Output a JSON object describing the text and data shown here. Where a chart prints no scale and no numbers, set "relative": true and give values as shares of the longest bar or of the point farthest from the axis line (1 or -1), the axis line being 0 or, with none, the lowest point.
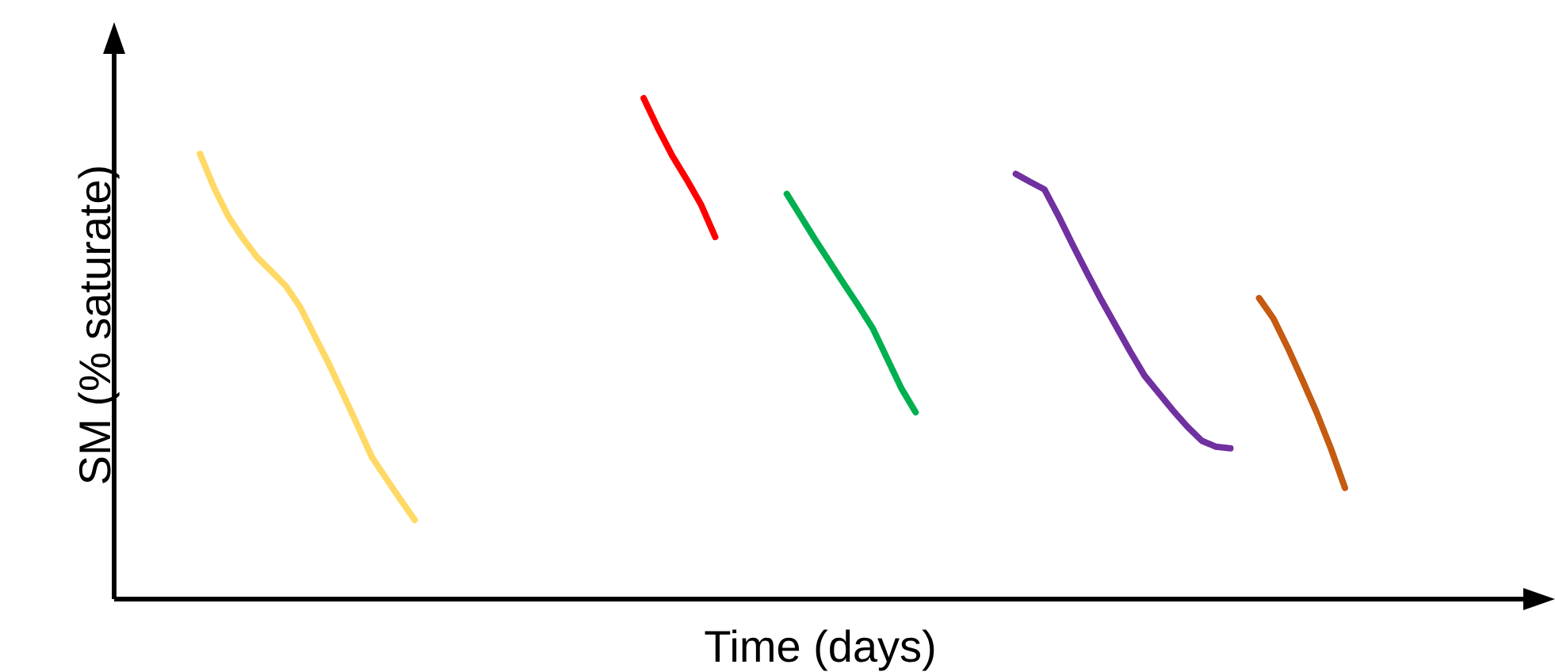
{
  "chart_data": {
    "type": "line",
    "xlabel": "Time (days)",
    "ylabel": "SM (% saturate)",
    "relative": true,
    "categories": [
      null,
      null,
      null,
      null,
      null,
      null,
      null,
      null,
      null,
      null,
      null,
      null,
      null,
      null,
      null,
      null,
      null,
      null,
      null,
      null,
      null,
      null,
      null,
      null,
      null,
      null,
      null,
      null,
      null,
      null,
      null,
      null,
      null,
      null,
      null,
      null,
      null,
      null,
      null,
      null,
      null,
      null,
      null,
      null,
      null,
      null,
      null,
      null,
      null,
      null,
      null,
      null,
      null,
      null,
      null,
      null,
      null,
      null,
      null,
      null,
      null,
      null,
      null,
      null,
      null,
      null,
      null,
      null,
      null,
      null,
      null,
      null,
      null,
      null,
      null,
      null,
      null,
      null,
      null,
      null,
      null,
      null,
      null,
      null,
      null,
      null,
      null,
      null,
      null,
      null,
      null
    ],
    "series": [
      {
        "color": "#ffd966",
        "values": [
          null,
          null,
          null,
          null,
          null,
          null,
          0.889,
          0.82,
          0.763,
          0.72,
          0.682,
          0.654,
          0.625,
          0.583,
          0.526,
          0.47,
          0.409,
          0.347,
          0.284,
          0.241,
          0.199,
          0.158,
          null,
          null,
          null,
          null,
          null,
          null,
          null,
          null,
          null,
          null,
          null,
          null,
          null,
          null,
          null,
          null,
          null,
          null,
          null,
          null,
          null,
          null,
          null,
          null,
          null,
          null,
          null,
          null,
          null,
          null,
          null,
          null,
          null,
          null,
          null,
          null,
          null,
          null,
          null,
          null,
          null,
          null,
          null,
          null,
          null,
          null,
          null,
          null,
          null,
          null,
          null,
          null,
          null,
          null,
          null,
          null,
          null,
          null,
          null,
          null,
          null,
          null,
          null,
          null,
          null,
          null,
          null,
          null,
          null
        ]
      },
      {
        "color": "#ff0000",
        "values": [
          null,
          null,
          null,
          null,
          null,
          null,
          null,
          null,
          null,
          null,
          null,
          null,
          null,
          null,
          null,
          null,
          null,
          null,
          null,
          null,
          null,
          null,
          null,
          null,
          null,
          null,
          null,
          null,
          null,
          null,
          null,
          null,
          null,
          null,
          null,
          null,
          null,
          1.0,
          0.94,
          0.885,
          0.838,
          0.788,
          0.723,
          null,
          null,
          null,
          null,
          null,
          null,
          null,
          null,
          null,
          null,
          null,
          null,
          null,
          null,
          null,
          null,
          null,
          null,
          null,
          null,
          null,
          null,
          null,
          null,
          null,
          null,
          null,
          null,
          null,
          null,
          null,
          null,
          null,
          null,
          null,
          null,
          null,
          null,
          null,
          null,
          null,
          null,
          null,
          null,
          null,
          null,
          null,
          null
        ]
      },
      {
        "color": "#00b050",
        "values": [
          null,
          null,
          null,
          null,
          null,
          null,
          null,
          null,
          null,
          null,
          null,
          null,
          null,
          null,
          null,
          null,
          null,
          null,
          null,
          null,
          null,
          null,
          null,
          null,
          null,
          null,
          null,
          null,
          null,
          null,
          null,
          null,
          null,
          null,
          null,
          null,
          null,
          null,
          null,
          null,
          null,
          null,
          null,
          null,
          null,
          null,
          null,
          0.809,
          0.763,
          0.717,
          0.673,
          0.629,
          0.586,
          0.541,
          0.481,
          0.421,
          0.373,
          null,
          null,
          null,
          null,
          null,
          null,
          null,
          null,
          null,
          null,
          null,
          null,
          null,
          null,
          null,
          null,
          null,
          null,
          null,
          null,
          null,
          null,
          null,
          null,
          null,
          null,
          null,
          null,
          null,
          null,
          null,
          null,
          null,
          null
        ]
      },
      {
        "color": "#7030a0",
        "values": [
          null,
          null,
          null,
          null,
          null,
          null,
          null,
          null,
          null,
          null,
          null,
          null,
          null,
          null,
          null,
          null,
          null,
          null,
          null,
          null,
          null,
          null,
          null,
          null,
          null,
          null,
          null,
          null,
          null,
          null,
          null,
          null,
          null,
          null,
          null,
          null,
          null,
          null,
          null,
          null,
          null,
          null,
          null,
          null,
          null,
          null,
          null,
          null,
          null,
          null,
          null,
          null,
          null,
          null,
          null,
          null,
          null,
          null,
          null,
          null,
          null,
          null,
          null,
          0.849,
          0.833,
          0.818,
          0.764,
          0.706,
          0.65,
          0.596,
          0.545,
          0.494,
          0.446,
          0.411,
          0.376,
          0.344,
          0.316,
          0.304,
          0.301,
          null,
          null,
          null,
          null,
          null,
          null,
          null,
          null,
          null,
          null,
          null,
          null
        ]
      },
      {
        "color": "#c55a11",
        "values": [
          null,
          null,
          null,
          null,
          null,
          null,
          null,
          null,
          null,
          null,
          null,
          null,
          null,
          null,
          null,
          null,
          null,
          null,
          null,
          null,
          null,
          null,
          null,
          null,
          null,
          null,
          null,
          null,
          null,
          null,
          null,
          null,
          null,
          null,
          null,
          null,
          null,
          null,
          null,
          null,
          null,
          null,
          null,
          null,
          null,
          null,
          null,
          null,
          null,
          null,
          null,
          null,
          null,
          null,
          null,
          null,
          null,
          null,
          null,
          null,
          null,
          null,
          null,
          null,
          null,
          null,
          null,
          null,
          null,
          null,
          null,
          null,
          null,
          null,
          null,
          null,
          null,
          null,
          null,
          null,
          0.601,
          0.56,
          0.502,
          0.439,
          0.374,
          0.302,
          0.222,
          null,
          null,
          null,
          null
        ]
      }
    ]
  }
}
